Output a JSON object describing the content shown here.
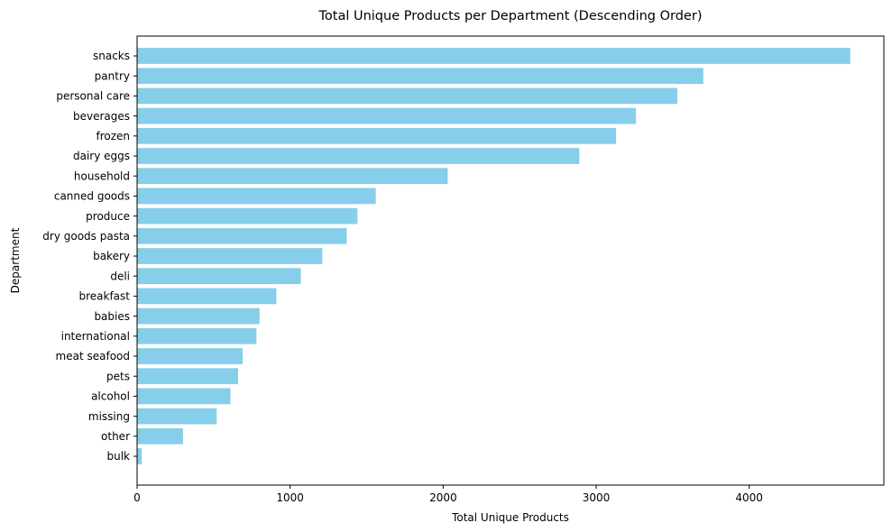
{
  "chart_data": {
    "type": "bar",
    "orientation": "horizontal",
    "title": "Total Unique Products per Department (Descending Order)",
    "xlabel": "Total Unique Products",
    "ylabel": "Department",
    "xlim": [
      0,
      4880
    ],
    "xticks": [
      0,
      1000,
      2000,
      3000,
      4000
    ],
    "grid": false,
    "legend": "none",
    "bar_color": "#87CEEB",
    "categories": [
      "snacks",
      "pantry",
      "personal care",
      "beverages",
      "frozen",
      "dairy eggs",
      "household",
      "canned goods",
      "produce",
      "dry goods pasta",
      "bakery",
      "deli",
      "breakfast",
      "babies",
      "international",
      "meat seafood",
      "pets",
      "alcohol",
      "missing",
      "other",
      "bulk"
    ],
    "values": [
      4660,
      3700,
      3530,
      3260,
      3130,
      2890,
      2030,
      1560,
      1440,
      1370,
      1210,
      1070,
      910,
      800,
      780,
      690,
      660,
      610,
      520,
      300,
      30
    ]
  }
}
